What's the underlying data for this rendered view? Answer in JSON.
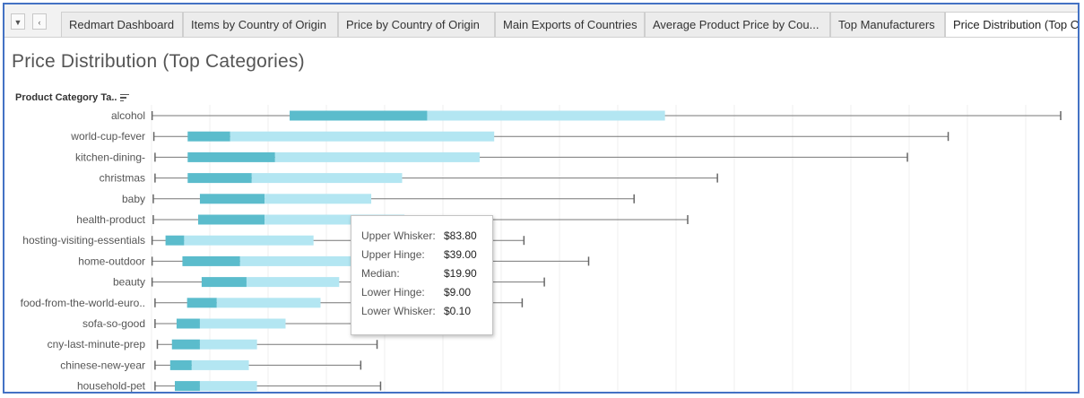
{
  "tabbar": {
    "nav_down_icon": "triangle-down-icon",
    "nav_prev_icon": "chevron-left-icon",
    "tabs": [
      {
        "label": "Redmart Dashboard"
      },
      {
        "label": "Items by Country of Origin"
      },
      {
        "label": "Price by Country of Origin"
      },
      {
        "label": "Main Exports of Countries"
      },
      {
        "label": "Average Product Price by Cou..."
      },
      {
        "label": "Top Manufacturers"
      },
      {
        "label": "Price Distribution (Top C"
      }
    ],
    "active_tab": 6
  },
  "page_title": "Price Distribution (Top Categories)",
  "axis_header": {
    "label": "Product Category Ta..",
    "icon": "sort-icon"
  },
  "tooltip": {
    "rows": [
      {
        "label": "Upper Whisker:",
        "value": "$83.80"
      },
      {
        "label": "Upper Hinge:",
        "value": "$39.00"
      },
      {
        "label": "Median:",
        "value": "$19.90"
      },
      {
        "label": "Lower Hinge:",
        "value": "$9.00"
      },
      {
        "label": "Lower Whisker:",
        "value": "$0.10"
      }
    ]
  },
  "chart_data": {
    "type": "boxplot",
    "orientation": "horizontal",
    "title": "Price Distribution (Top Categories)",
    "ylabel": "Product Category Ta..",
    "xlim": [
      0,
      157
    ],
    "grid": true,
    "colors": {
      "lower_box": "#5bbccc",
      "upper_box": "#b3e6f2",
      "whisker": "#777777"
    },
    "categories": [
      "alcohol",
      "world-cup-fever",
      "kitchen-dining-",
      "christmas",
      "baby",
      "health-product",
      "hosting-visiting-essentials",
      "home-outdoor",
      "beauty",
      "food-from-the-world-euro..",
      "sofa-so-good",
      "cny-last-minute-prep",
      "chinese-new-year",
      "household-pet"
    ],
    "series": [
      {
        "category": "alcohol",
        "min": 0.1,
        "q1": 23.7,
        "median": 47.3,
        "q3": 88.1,
        "max": 156.0
      },
      {
        "category": "world-cup-fever",
        "min": 0.4,
        "q1": 6.2,
        "median": 13.5,
        "q3": 58.8,
        "max": 136.7
      },
      {
        "category": "kitchen-dining-",
        "min": 0.6,
        "q1": 6.2,
        "median": 21.2,
        "q3": 56.3,
        "max": 129.7
      },
      {
        "category": "christmas",
        "min": 0.6,
        "q1": 6.2,
        "median": 17.2,
        "q3": 43.0,
        "max": 97.1
      },
      {
        "category": "baby",
        "min": 0.3,
        "q1": 8.3,
        "median": 19.4,
        "q3": 37.7,
        "max": 82.8
      },
      {
        "category": "health-product",
        "min": 0.3,
        "q1": 8.0,
        "median": 19.4,
        "q3": 43.4,
        "max": 92.0
      },
      {
        "category": "hosting-visiting-essentials",
        "min": 0.1,
        "q1": 2.4,
        "median": 5.6,
        "q3": 27.8,
        "max": 63.9
      },
      {
        "category": "home-outdoor",
        "min": 0.1,
        "q1": 5.3,
        "median": 15.2,
        "q3": 41.0,
        "max": 75.0
      },
      {
        "category": "beauty",
        "min": 0.1,
        "q1": 8.6,
        "median": 16.3,
        "q3": 32.2,
        "max": 67.4
      },
      {
        "category": "food-from-the-world-euro..",
        "min": 0.6,
        "q1": 6.1,
        "median": 11.2,
        "q3": 29.0,
        "max": 63.6
      },
      {
        "category": "sofa-so-good",
        "min": 0.6,
        "q1": 4.3,
        "median": 8.3,
        "q3": 23.0,
        "max": 47.0
      },
      {
        "category": "cny-last-minute-prep",
        "min": 1.0,
        "q1": 3.5,
        "median": 8.3,
        "q3": 18.1,
        "max": 38.7
      },
      {
        "category": "chinese-new-year",
        "min": 0.6,
        "q1": 3.2,
        "median": 6.9,
        "q3": 16.7,
        "max": 35.9
      },
      {
        "category": "household-pet",
        "min": 0.6,
        "q1": 4.0,
        "median": 8.3,
        "q3": 18.1,
        "max": 39.3
      }
    ]
  }
}
